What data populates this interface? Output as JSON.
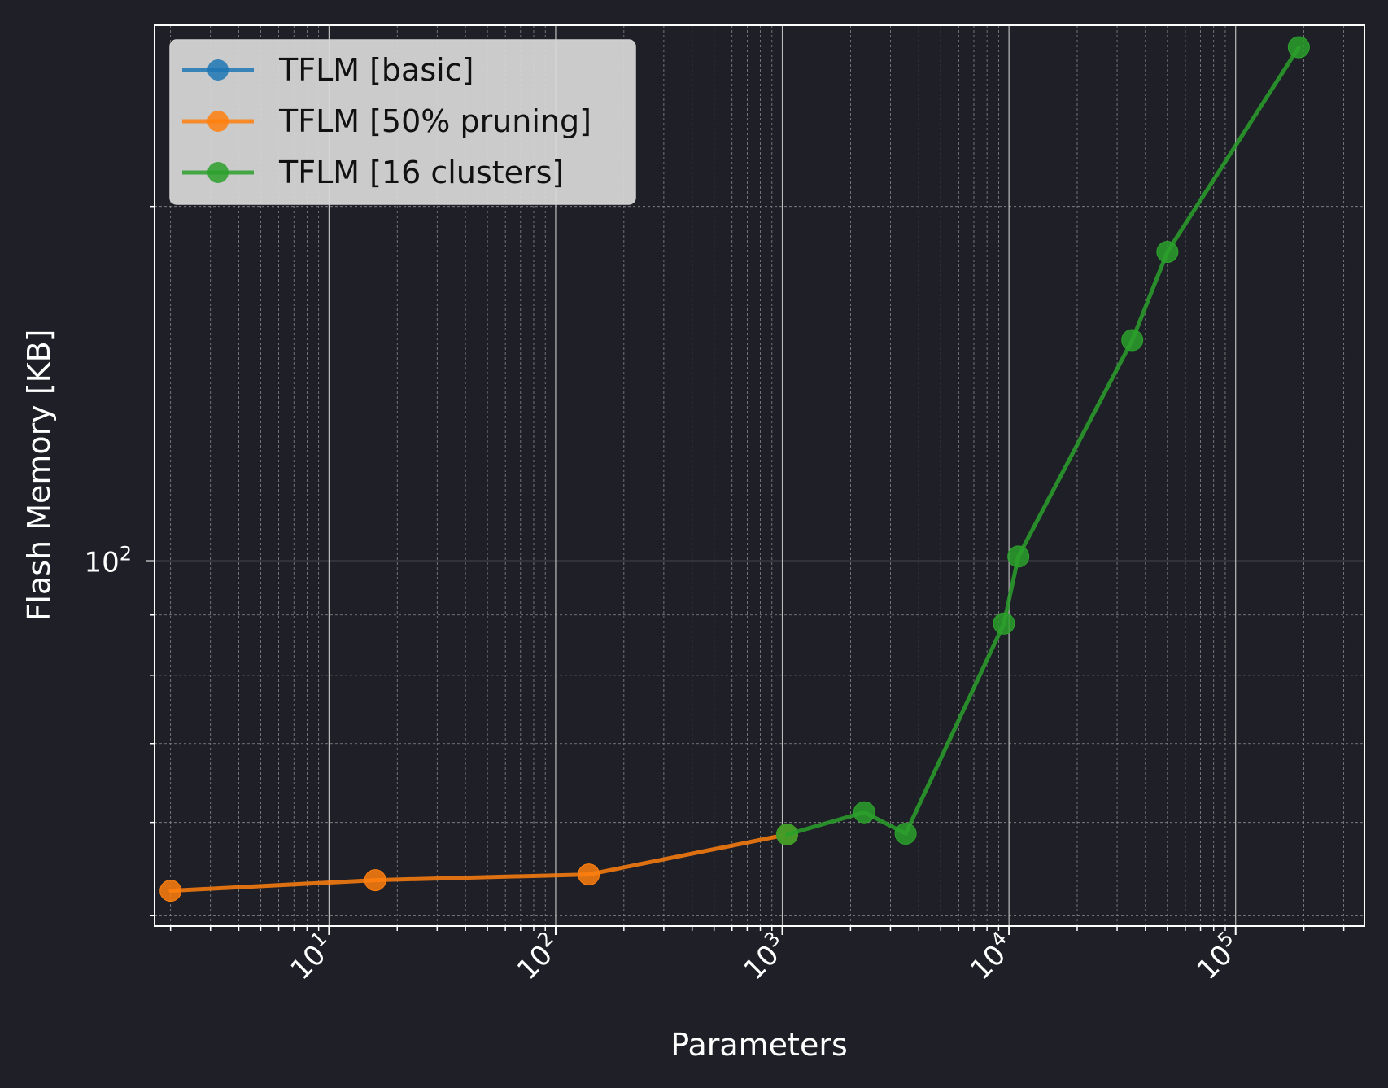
{
  "chart_data": {
    "type": "line",
    "title": "",
    "xlabel": "Parameters",
    "ylabel": "Flash Memory [KB]",
    "xscale": "log",
    "yscale": "log",
    "xlim": [
      1.7,
      370000
    ],
    "ylim": [
      49,
      285
    ],
    "xticks": [
      {
        "value": 10,
        "base": "10",
        "exp": "1"
      },
      {
        "value": 100,
        "base": "10",
        "exp": "2"
      },
      {
        "value": 1000,
        "base": "10",
        "exp": "3"
      },
      {
        "value": 10000,
        "base": "10",
        "exp": "4"
      },
      {
        "value": 100000,
        "base": "10",
        "exp": "5"
      }
    ],
    "yticks": [
      {
        "value": 100,
        "base": "10",
        "exp": "2"
      }
    ],
    "grid": true,
    "legend_position": "top-left",
    "series": [
      {
        "name": "TFLM [basic]",
        "color": "#1f77b4",
        "x": [],
        "y": []
      },
      {
        "name": "TFLM [50% pruning]",
        "color": "#ff7f0e",
        "x": [
          2,
          16,
          140,
          1050
        ],
        "y": [
          52.5,
          53.6,
          54.2,
          58.6
        ]
      },
      {
        "name": "TFLM [16 clusters]",
        "color": "#2ca02c",
        "x": [
          1050,
          2300,
          3500,
          9500,
          11000,
          35000,
          50000,
          190000
        ],
        "y": [
          58.6,
          61.2,
          58.7,
          88.5,
          100.9,
          154,
          183,
          273
        ]
      }
    ]
  }
}
